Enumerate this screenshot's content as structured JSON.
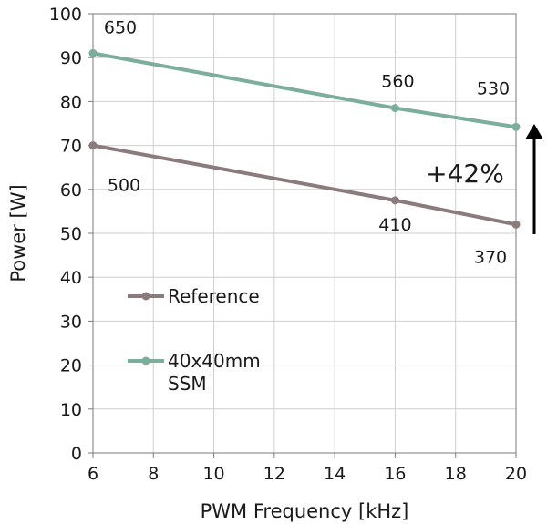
{
  "chart_data": {
    "type": "line",
    "xlabel": "PWM Frequency [kHz]",
    "ylabel": "Power [W]",
    "xlim": [
      6,
      20
    ],
    "ylim": [
      0,
      100
    ],
    "xticks": [
      "6",
      "8",
      "10",
      "12",
      "14",
      "16",
      "18",
      "20"
    ],
    "yticks": [
      "0",
      "10",
      "20",
      "30",
      "40",
      "50",
      "60",
      "70",
      "80",
      "90",
      "100"
    ],
    "grid": true,
    "legend_position": "left-middle",
    "series": [
      {
        "name": "Reference",
        "color": "#8c7b7d",
        "x": [
          6,
          16,
          20
        ],
        "y": [
          70,
          57.5,
          52
        ],
        "point_labels": [
          "500",
          "410",
          "370"
        ]
      },
      {
        "name": "40x40mm SSM",
        "color": "#7cae9c",
        "x": [
          6,
          16,
          20
        ],
        "y": [
          91,
          78.5,
          74.2
        ],
        "point_labels": [
          "650",
          "560",
          "530"
        ]
      }
    ],
    "annotations": [
      {
        "text": "+42%",
        "arrow": "up"
      }
    ]
  }
}
